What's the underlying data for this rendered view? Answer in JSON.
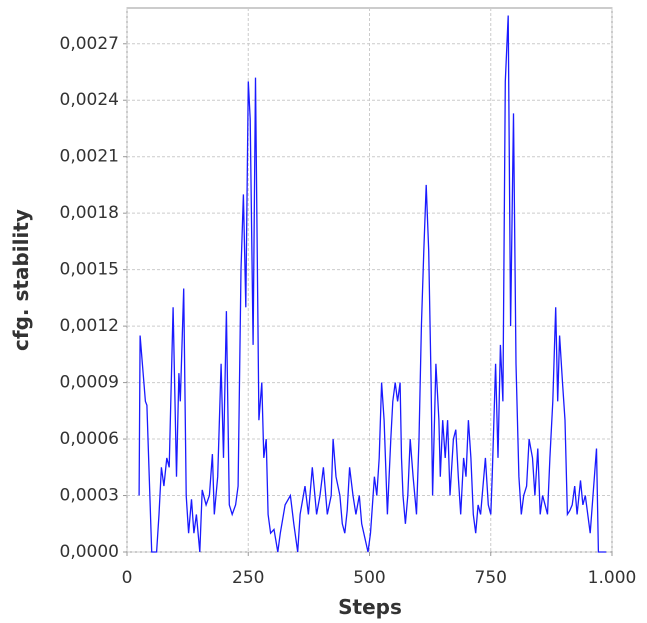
{
  "chart_data": {
    "type": "line",
    "xlabel": "Steps",
    "ylabel": "cfg. stability",
    "color": "#1a1aff",
    "grid": true,
    "xlim": [
      0,
      1000
    ],
    "xticks": [
      0,
      250,
      500,
      750,
      {
        "value": 1000,
        "label": "1.000"
      }
    ],
    "ylim": [
      0,
      0.00289
    ],
    "yticks": [
      {
        "value": 0,
        "label": "0,0000"
      },
      {
        "value": 0.0003,
        "label": "0,0003"
      },
      {
        "value": 0.0006,
        "label": "0,0006"
      },
      {
        "value": 0.0009,
        "label": "0,0009"
      },
      {
        "value": 0.0012,
        "label": "0,0012"
      },
      {
        "value": 0.0015,
        "label": "0,0015"
      },
      {
        "value": 0.0018,
        "label": "0,0018"
      },
      {
        "value": 0.0021,
        "label": "0,0021"
      },
      {
        "value": 0.0024,
        "label": "0,0024"
      },
      {
        "value": 0.0027,
        "label": "0,0027"
      }
    ],
    "x": [
      25,
      27,
      38,
      41,
      51,
      61,
      66,
      71,
      76,
      82,
      87,
      95,
      102,
      107,
      110,
      117,
      122,
      127,
      133,
      138,
      143,
      150,
      155,
      163,
      170,
      176,
      180,
      187,
      194,
      199,
      205,
      211,
      217,
      224,
      229,
      235,
      240,
      245,
      250,
      254,
      260,
      265,
      272,
      278,
      282,
      287,
      291,
      296,
      303,
      311,
      316,
      326,
      337,
      344,
      352,
      357,
      367,
      374,
      382,
      391,
      398,
      405,
      413,
      421,
      425,
      431,
      439,
      444,
      449,
      454,
      459,
      466,
      472,
      479,
      484,
      497,
      502,
      510,
      515,
      520,
      525,
      530,
      537,
      544,
      548,
      553,
      558,
      563,
      566,
      569,
      574,
      579,
      584,
      590,
      597,
      602,
      607,
      612,
      617,
      622,
      627,
      630,
      634,
      637,
      643,
      646,
      651,
      656,
      661,
      666,
      673,
      678,
      683,
      688,
      694,
      699,
      704,
      709,
      714,
      719,
      724,
      729,
      734,
      739,
      745,
      750,
      753,
      760,
      765,
      770,
      775,
      780,
      786,
      791,
      797,
      802,
      808,
      813,
      818,
      824,
      829,
      836,
      841,
      847,
      852,
      857,
      862,
      867,
      872,
      878,
      884,
      888,
      892,
      898,
      903,
      908,
      913,
      918,
      923,
      928,
      935,
      940,
      945,
      955,
      968,
      972,
      988
    ],
    "values": [
      0.0003,
      0.00115,
      0.0008,
      0.00078,
      0,
      0,
      0.0002,
      0.00045,
      0.00035,
      0.0005,
      0.00045,
      0.0013,
      0.0004,
      0.00095,
      0.0008,
      0.0014,
      0.0003,
      0.0001,
      0.00028,
      0.0001,
      0.0002,
      0,
      0.00033,
      0.00025,
      0.0003,
      0.00052,
      0.0002,
      0.0004,
      0.001,
      0.0005,
      0.00128,
      0.00025,
      0.0002,
      0.00025,
      0.00035,
      0.0015,
      0.0019,
      0.0013,
      0.0025,
      0.0023,
      0.0011,
      0.00252,
      0.0007,
      0.0009,
      0.0005,
      0.0006,
      0.0002,
      0.0001,
      0.00012,
      0,
      0.0001,
      0.00025,
      0.0003,
      0.00015,
      0,
      0.0002,
      0.00035,
      0.0002,
      0.00045,
      0.0002,
      0.0003,
      0.00045,
      0.0002,
      0.0003,
      0.0006,
      0.0004,
      0.0003,
      0.00015,
      0.0001,
      0.00022,
      0.00045,
      0.0003,
      0.0002,
      0.0003,
      0.00015,
      0,
      0.0001,
      0.0004,
      0.0003,
      0.0005,
      0.0009,
      0.0007,
      0.0002,
      0.0006,
      0.0008,
      0.0009,
      0.0008,
      0.0009,
      0.0005,
      0.0003,
      0.00015,
      0.0003,
      0.0006,
      0.0004,
      0.0002,
      0.0006,
      0.0012,
      0.0016,
      0.00195,
      0.0016,
      0.0009,
      0.0003,
      0.0007,
      0.001,
      0.0007,
      0.0004,
      0.0007,
      0.0005,
      0.0007,
      0.0003,
      0.0006,
      0.00065,
      0.0004,
      0.0002,
      0.0005,
      0.0004,
      0.0007,
      0.0005,
      0.0002,
      0.0001,
      0.00025,
      0.0002,
      0.00035,
      0.0005,
      0.00025,
      0.0002,
      0.0004,
      0.001,
      0.0005,
      0.0011,
      0.0008,
      0.0025,
      0.00285,
      0.0012,
      0.00233,
      0.001,
      0.0004,
      0.0002,
      0.0003,
      0.00035,
      0.0006,
      0.0005,
      0.0003,
      0.00055,
      0.0002,
      0.0003,
      0.00025,
      0.0002,
      0.0005,
      0.0008,
      0.0013,
      0.0008,
      0.00115,
      0.0009,
      0.0007,
      0.0002,
      0.00022,
      0.00025,
      0.00035,
      0.0002,
      0.00038,
      0.00025,
      0.0003,
      0.0001,
      0.00055,
      0,
      0
    ]
  }
}
